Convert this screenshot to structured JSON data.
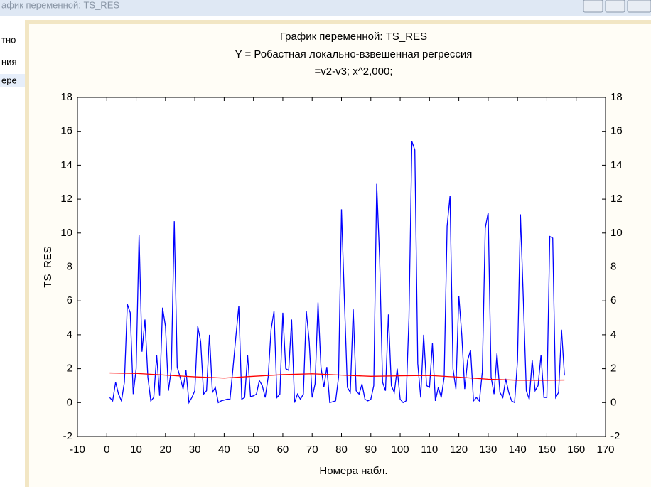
{
  "window": {
    "title": "афик переменной: TS_RES",
    "side_labels": [
      "тно",
      "ния",
      "ере"
    ]
  },
  "chart_data": {
    "type": "line",
    "title": "График переменной: TS_RES",
    "subtitle": [
      "Y = Робастная локально-взвешенная регрессия",
      "=v2-v3; x^2,000;"
    ],
    "xlabel": "Номера набл.",
    "ylabel": "TS_RES",
    "xlim": [
      -10,
      170
    ],
    "xticks": [
      -10,
      0,
      10,
      20,
      30,
      40,
      50,
      60,
      70,
      80,
      90,
      100,
      110,
      120,
      130,
      140,
      150,
      160,
      170
    ],
    "ylim": [
      -2,
      18
    ],
    "yticks": [
      -2,
      0,
      2,
      4,
      6,
      8,
      10,
      12,
      14,
      16,
      18
    ],
    "y2lim": [
      -2,
      18
    ],
    "y2ticks": [
      -2,
      0,
      2,
      4,
      6,
      8,
      10,
      12,
      14,
      16,
      18
    ],
    "grid": false,
    "x": [
      1,
      2,
      3,
      4,
      5,
      6,
      7,
      8,
      9,
      10,
      11,
      12,
      13,
      14,
      15,
      16,
      17,
      18,
      19,
      20,
      21,
      22,
      23,
      24,
      25,
      26,
      27,
      28,
      29,
      30,
      31,
      32,
      33,
      34,
      35,
      36,
      37,
      38,
      39,
      40,
      41,
      42,
      43,
      44,
      45,
      46,
      47,
      48,
      49,
      50,
      51,
      52,
      53,
      54,
      55,
      56,
      57,
      58,
      59,
      60,
      61,
      62,
      63,
      64,
      65,
      66,
      67,
      68,
      69,
      70,
      71,
      72,
      73,
      74,
      75,
      76,
      77,
      78,
      79,
      80,
      81,
      82,
      83,
      84,
      85,
      86,
      87,
      88,
      89,
      90,
      91,
      92,
      93,
      94,
      95,
      96,
      97,
      98,
      99,
      100,
      101,
      102,
      103,
      104,
      105,
      106,
      107,
      108,
      109,
      110,
      111,
      112,
      113,
      114,
      115,
      116,
      117,
      118,
      119,
      120,
      121,
      122,
      123,
      124,
      125,
      126,
      127,
      128,
      129,
      130,
      131,
      132,
      133,
      134,
      135,
      136,
      137,
      138,
      139,
      140,
      141,
      142,
      143,
      144,
      145,
      146,
      147,
      148,
      149,
      150,
      151,
      152,
      153,
      154,
      155,
      156
    ],
    "series": [
      {
        "name": "TS_RES",
        "color": "#0000ff",
        "values": [
          0.3,
          0.1,
          1.2,
          0.5,
          0.1,
          1.2,
          5.8,
          5.3,
          0.5,
          2.0,
          9.9,
          3.0,
          4.9,
          1.5,
          0.1,
          0.3,
          2.8,
          0.4,
          5.6,
          4.5,
          0.7,
          2.0,
          10.7,
          2.1,
          1.5,
          0.8,
          1.9,
          0.0,
          0.3,
          0.7,
          4.5,
          3.6,
          0.5,
          0.7,
          4.0,
          0.6,
          0.9,
          0.0,
          0.1,
          0.15,
          0.2,
          0.2,
          2.0,
          3.9,
          5.7,
          0.2,
          0.3,
          2.8,
          0.35,
          0.4,
          0.5,
          1.3,
          1.0,
          0.3,
          1.5,
          4.3,
          5.4,
          0.3,
          0.5,
          5.3,
          2.0,
          1.9,
          4.9,
          0.0,
          0.5,
          0.2,
          0.5,
          5.4,
          3.6,
          0.3,
          1.1,
          5.9,
          2.1,
          0.9,
          2.1,
          0.0,
          0.05,
          0.1,
          1.5,
          11.4,
          6.0,
          0.9,
          0.6,
          5.5,
          0.7,
          0.5,
          1.1,
          0.2,
          0.1,
          0.2,
          1.0,
          12.9,
          8.5,
          1.2,
          0.7,
          5.2,
          1.0,
          0.6,
          2.0,
          0.2,
          0.0,
          0.1,
          5.0,
          15.4,
          14.9,
          2.3,
          0.3,
          4.0,
          1.0,
          0.9,
          3.5,
          0.1,
          0.9,
          0.3,
          1.5,
          10.4,
          12.2,
          2.0,
          0.8,
          6.3,
          4.0,
          0.8,
          2.5,
          3.1,
          0.1,
          0.3,
          0.1,
          1.8,
          10.3,
          11.2,
          1.5,
          0.5,
          2.9,
          0.6,
          0.3,
          1.4,
          0.6,
          0.1,
          0.0,
          2.5,
          11.1,
          6.0,
          0.7,
          0.2,
          2.5,
          0.7,
          1.0,
          2.8,
          0.3,
          0.3,
          9.8,
          9.7,
          0.3,
          0.6,
          4.3,
          1.6
        ]
      },
      {
        "name": "Робастная локально-взвешенная регрессия",
        "color": "#ff0000",
        "x": [
          1,
          10,
          20,
          30,
          40,
          50,
          60,
          70,
          80,
          90,
          100,
          110,
          120,
          130,
          140,
          150,
          156
        ],
        "values": [
          1.75,
          1.72,
          1.62,
          1.52,
          1.45,
          1.55,
          1.65,
          1.7,
          1.62,
          1.55,
          1.58,
          1.6,
          1.5,
          1.38,
          1.32,
          1.32,
          1.33
        ]
      }
    ]
  }
}
